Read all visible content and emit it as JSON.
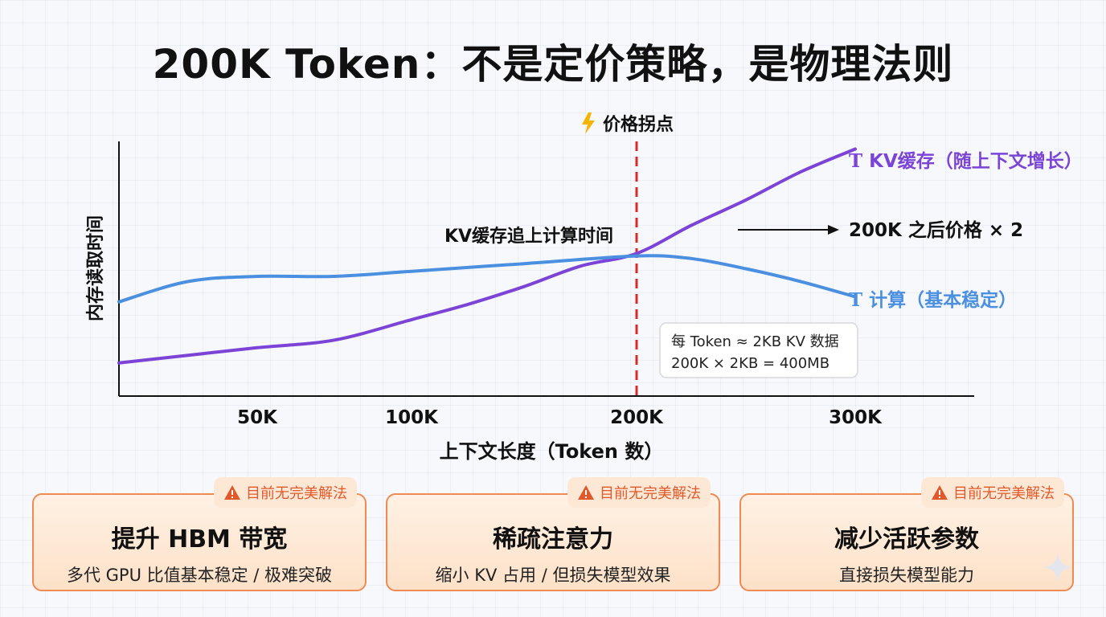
{
  "title": "200K Token：不是定价策略，是物理法则",
  "chart_data": {
    "type": "line",
    "xlabel": "上下文长度（Token 数）",
    "ylabel": "内存读取时间",
    "x_ticks": [
      {
        "value": 50,
        "label": "50K"
      },
      {
        "value": 100,
        "label": "100K"
      },
      {
        "value": 200,
        "label": "200K"
      },
      {
        "value": 300,
        "label": "300K"
      }
    ],
    "xlim": [
      0,
      350
    ],
    "ylim": [
      0,
      100
    ],
    "series": [
      {
        "name": "KV缓存（随上下文增长）",
        "marker": "T",
        "color": "#7b44d6",
        "points": [
          [
            0,
            13
          ],
          [
            25,
            16
          ],
          [
            50,
            19
          ],
          [
            75,
            22
          ],
          [
            100,
            30
          ],
          [
            125,
            36
          ],
          [
            150,
            43
          ],
          [
            175,
            51
          ],
          [
            200,
            56
          ],
          [
            225,
            67
          ],
          [
            250,
            77
          ],
          [
            275,
            88
          ],
          [
            300,
            97
          ]
        ]
      },
      {
        "name": "计算（基本稳定）",
        "marker": "T",
        "color": "#4a8fe0",
        "points": [
          [
            0,
            37
          ],
          [
            25,
            45
          ],
          [
            50,
            47
          ],
          [
            75,
            47
          ],
          [
            100,
            49
          ],
          [
            150,
            52
          ],
          [
            200,
            55
          ],
          [
            225,
            54
          ],
          [
            250,
            50
          ],
          [
            275,
            45
          ],
          [
            300,
            39
          ]
        ]
      }
    ],
    "threshold": {
      "x": 200,
      "label": "价格拐点",
      "icon": "lightning-icon",
      "color": "#d62b2b"
    },
    "annotations": {
      "crossover": "KV缓存追上计算时间",
      "price": "200K 之后价格 × 2",
      "note_lines": [
        "每 Token ≈ 2KB KV 数据",
        "200K × 2KB = 400MB"
      ]
    }
  },
  "cards": [
    {
      "badge": "目前无完美解法",
      "title": "提升 HBM 带宽",
      "sub": "多代 GPU 比值基本稳定 / 极难突破"
    },
    {
      "badge": "目前无完美解法",
      "title": "稀疏注意力",
      "sub": "缩小 KV 占用 / 但损失模型效果"
    },
    {
      "badge": "目前无完美解法",
      "title": "减少活跃参数",
      "sub": "直接损失模型能力"
    }
  ],
  "colors": {
    "accent_orange": "#ef8a52",
    "warning_text": "#e0592a",
    "kv_line": "#7b44d6",
    "compute_line": "#4a8fe0",
    "threshold": "#d62b2b"
  }
}
